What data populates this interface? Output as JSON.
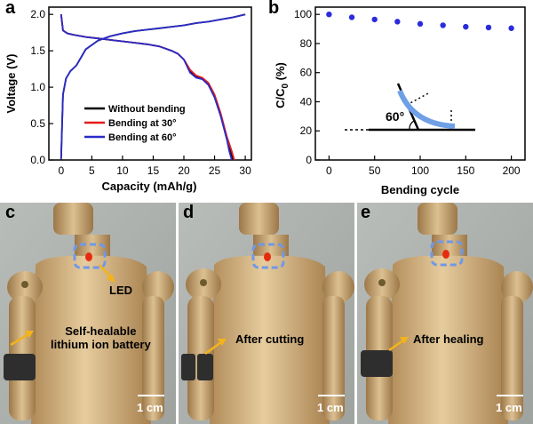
{
  "panels": {
    "a": "a",
    "b": "b",
    "c": "c",
    "d": "d",
    "e": "e"
  },
  "chart_a": {
    "type": "line",
    "xlabel": "Capacity (mAh/g)",
    "ylabel": "Voltage (V)",
    "xlim": [
      -2,
      31
    ],
    "ylim": [
      0,
      2.1
    ],
    "xticks": [
      "0",
      "5",
      "10",
      "15",
      "20",
      "25",
      "30"
    ],
    "yticks": [
      "0.0",
      "0.5",
      "1.0",
      "1.5",
      "2.0"
    ],
    "legend": [
      "Without bending",
      "Bending at 30°",
      "Bending at 60°"
    ],
    "colors": [
      "#000000",
      "#e41a1a",
      "#2b2bc8"
    ]
  },
  "chart_b": {
    "type": "scatter",
    "xlabel": "Bending cycle",
    "ylabel_main": "C/C",
    "ylabel_sub": "0",
    "ylabel_unit": " (%)",
    "xlim": [
      -15,
      215
    ],
    "ylim": [
      0,
      105
    ],
    "xticks": [
      "0",
      "50",
      "100",
      "150",
      "200"
    ],
    "yticks": [
      "0",
      "20",
      "40",
      "60",
      "80",
      "100"
    ],
    "angle_label": "60°",
    "color": "#2b2bdb"
  },
  "chart_data": [
    {
      "type": "line",
      "xlabel": "Capacity (mAh/g)",
      "ylabel": "Voltage (V)",
      "xlim": [
        -2,
        31
      ],
      "ylim": [
        0,
        2.1
      ],
      "series": [
        {
          "name": "Without bending",
          "role": "discharge",
          "x": [
            0,
            0.3,
            1,
            2,
            4,
            6,
            8,
            10,
            12,
            14,
            16,
            18,
            19,
            20,
            21,
            22,
            23,
            24,
            25,
            26,
            27,
            27.6,
            28
          ],
          "y": [
            2.0,
            1.78,
            1.74,
            1.72,
            1.69,
            1.67,
            1.65,
            1.63,
            1.61,
            1.59,
            1.56,
            1.5,
            1.46,
            1.38,
            1.22,
            1.14,
            1.12,
            1.05,
            0.88,
            0.62,
            0.3,
            0.12,
            0.0
          ]
        },
        {
          "name": "Without bending",
          "role": "charge",
          "x": [
            0,
            0.3,
            0.8,
            1.5,
            2.5,
            4,
            6,
            8,
            10,
            12,
            14,
            16,
            18,
            20,
            22,
            24,
            26,
            28,
            30
          ],
          "y": [
            0.02,
            0.9,
            1.12,
            1.22,
            1.3,
            1.52,
            1.64,
            1.7,
            1.74,
            1.77,
            1.79,
            1.81,
            1.83,
            1.85,
            1.88,
            1.9,
            1.93,
            1.96,
            2.0
          ]
        },
        {
          "name": "Bending at 30°",
          "role": "discharge",
          "x": [
            0,
            0.3,
            1,
            2,
            4,
            6,
            8,
            10,
            12,
            14,
            16,
            18,
            19,
            20,
            21,
            22,
            23,
            24,
            25,
            26,
            27,
            27.8,
            28.2
          ],
          "y": [
            2.0,
            1.78,
            1.74,
            1.72,
            1.69,
            1.67,
            1.65,
            1.63,
            1.61,
            1.59,
            1.56,
            1.5,
            1.46,
            1.38,
            1.24,
            1.16,
            1.13,
            1.06,
            0.9,
            0.64,
            0.32,
            0.12,
            0.0
          ]
        },
        {
          "name": "Bending at 60°",
          "role": "discharge",
          "x": [
            0,
            0.3,
            1,
            2,
            4,
            6,
            8,
            10,
            12,
            14,
            16,
            18,
            19,
            20,
            21,
            22,
            23,
            24,
            25,
            26,
            27,
            27.4,
            27.8
          ],
          "y": [
            2.0,
            1.78,
            1.74,
            1.72,
            1.69,
            1.67,
            1.65,
            1.63,
            1.61,
            1.59,
            1.56,
            1.5,
            1.46,
            1.38,
            1.2,
            1.13,
            1.11,
            1.03,
            0.86,
            0.6,
            0.28,
            0.12,
            0.0
          ]
        },
        {
          "name": "Bending at 60°",
          "role": "charge",
          "x": [
            0,
            0.3,
            0.8,
            1.5,
            2.5,
            4,
            6,
            8,
            10,
            12,
            14,
            16,
            18,
            20,
            22,
            24,
            26,
            28,
            30
          ],
          "y": [
            0.02,
            0.9,
            1.12,
            1.22,
            1.3,
            1.52,
            1.64,
            1.7,
            1.74,
            1.77,
            1.79,
            1.81,
            1.83,
            1.85,
            1.88,
            1.9,
            1.93,
            1.96,
            2.0
          ]
        }
      ]
    },
    {
      "type": "scatter",
      "xlabel": "Bending cycle",
      "ylabel": "C/C0 (%)",
      "xlim": [
        -15,
        215
      ],
      "ylim": [
        0,
        105
      ],
      "x": [
        0,
        25,
        50,
        75,
        100,
        125,
        150,
        175,
        200
      ],
      "y": [
        100,
        98,
        96.5,
        95,
        93.5,
        92.5,
        91.5,
        91,
        90.5
      ]
    }
  ],
  "photos": {
    "c": {
      "led_label": "LED",
      "caption_line1": "Self-healable",
      "caption_line2": "lithium ion battery",
      "scale": "1 cm"
    },
    "d": {
      "caption_line1": "After cutting",
      "scale": "1 cm"
    },
    "e": {
      "caption_line1": "After healing",
      "scale": "1 cm"
    }
  }
}
